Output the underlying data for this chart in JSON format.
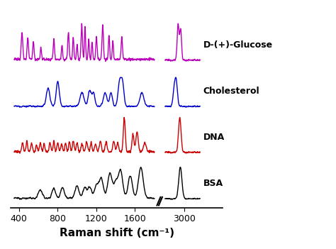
{
  "xlabel": "Raman shift (cm⁻¹)",
  "labels": [
    "D-(+)-Glucose",
    "Cholesterol",
    "DNA",
    "BSA"
  ],
  "colors": [
    "#bb00bb",
    "#0000cc",
    "#cc0000",
    "#000000"
  ],
  "x_tick_labels": [
    "400",
    "800",
    "1200",
    "1600",
    "3000"
  ],
  "x_tick_wn": [
    400,
    800,
    1200,
    1600,
    3000
  ],
  "offsets": [
    3.0,
    2.0,
    1.0,
    0.0
  ],
  "background_color": "#ffffff",
  "linewidth": 1.0,
  "label_fontsize": 9,
  "xlabel_fontsize": 11
}
